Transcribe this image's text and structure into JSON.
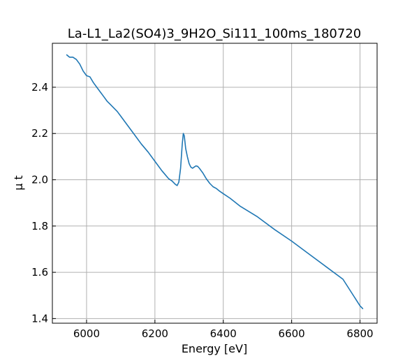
{
  "chart_data": {
    "type": "line",
    "title": "La-L1_La2(SO4)3_9H2O_Si111_100ms_180720",
    "xlabel": "Energy [eV]",
    "ylabel": "μ t",
    "xlim": [
      5900,
      6850
    ],
    "ylim": [
      1.38,
      2.59
    ],
    "xticks": [
      6000,
      6200,
      6400,
      6600,
      6800
    ],
    "yticks": [
      1.4,
      1.6,
      1.8,
      2.0,
      2.2,
      2.4
    ],
    "xtick_labels": [
      "6000",
      "6200",
      "6400",
      "6600",
      "6800"
    ],
    "ytick_labels": [
      "1.4",
      "1.6",
      "1.8",
      "2.0",
      "2.2",
      "2.4"
    ],
    "grid": true,
    "series": [
      {
        "color": "#1f77b4",
        "x": [
          5942,
          5950,
          5960,
          5970,
          5980,
          5990,
          6000,
          6010,
          6020,
          6030,
          6040,
          6050,
          6060,
          6070,
          6080,
          6090,
          6100,
          6110,
          6120,
          6140,
          6160,
          6180,
          6200,
          6220,
          6240,
          6250,
          6260,
          6265,
          6270,
          6275,
          6280,
          6283,
          6286,
          6290,
          6295,
          6300,
          6305,
          6310,
          6315,
          6320,
          6325,
          6330,
          6335,
          6340,
          6350,
          6360,
          6370,
          6380,
          6390,
          6400,
          6420,
          6450,
          6500,
          6550,
          6600,
          6650,
          6700,
          6750,
          6800,
          6808
        ],
        "y": [
          2.54,
          2.53,
          2.53,
          2.52,
          2.5,
          2.47,
          2.45,
          2.445,
          2.42,
          2.4,
          2.38,
          2.36,
          2.34,
          2.325,
          2.31,
          2.295,
          2.275,
          2.255,
          2.235,
          2.195,
          2.155,
          2.12,
          2.08,
          2.04,
          2.005,
          1.995,
          1.98,
          1.975,
          1.99,
          2.05,
          2.155,
          2.2,
          2.19,
          2.135,
          2.1,
          2.07,
          2.055,
          2.05,
          2.055,
          2.06,
          2.058,
          2.05,
          2.04,
          2.03,
          2.005,
          1.985,
          1.97,
          1.962,
          1.95,
          1.94,
          1.92,
          1.885,
          1.84,
          1.785,
          1.735,
          1.68,
          1.625,
          1.57,
          1.455,
          1.443
        ]
      }
    ]
  }
}
